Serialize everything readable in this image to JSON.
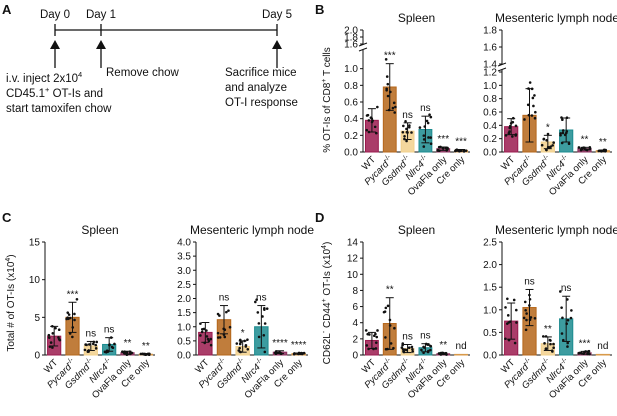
{
  "panel_labels": [
    "A",
    "B",
    "C",
    "D"
  ],
  "timeline": {
    "days": [
      "Day 0",
      "Day 1",
      "Day 5"
    ],
    "event_day0": [
      "i.v. inject 2x10",
      "4",
      "CD45.1",
      "+",
      " OT-Is and",
      "start tamoxifen chow"
    ],
    "event_day1": "Remove chow",
    "event_day5": [
      "Sacrifice mice",
      "and  analyze",
      "OT-I response"
    ]
  },
  "categories": [
    {
      "pre": "WT",
      "sup": "",
      "italic": false
    },
    {
      "pre": "Pycard",
      "sup": "-/-",
      "italic": true
    },
    {
      "pre": "Gsdmd",
      "sup": "-/-",
      "italic": true
    },
    {
      "pre": "Nlrc4",
      "sup": "-/-",
      "italic": true
    },
    {
      "pre": "OvaFla only",
      "sup": "",
      "italic": false
    },
    {
      "pre": "Cre only",
      "sup": "",
      "italic": false
    }
  ],
  "colors": {
    "WT": "#9b1b4f",
    "Pycard": "#b5661a",
    "Gsdmd": "#f2d08c",
    "Nlrc4": "#1b8b8f",
    "OvaFla": "#8a2f5c",
    "Cre": "#d89a4a"
  },
  "ylabels": {
    "B": [
      "% OT-Is of CD8",
      "+",
      " T cells"
    ],
    "C": [
      "Total # of OT-Is (x10",
      "4",
      ")"
    ],
    "D": [
      "CD62L",
      "-",
      " CD44",
      "+",
      " OT-Is (x10",
      "4",
      ")"
    ]
  },
  "chart_data": [
    {
      "panel": "B",
      "type": "scatter",
      "title": "Spleen",
      "ylim": [
        0,
        2.0
      ],
      "y_break": [
        1.2,
        1.6
      ],
      "yticks": [
        "0.0",
        "0.2",
        "0.4",
        "0.6",
        "0.8",
        "1.0",
        "1.6",
        "1.8",
        "2.0"
      ],
      "values": [
        0.38,
        0.78,
        0.25,
        0.27,
        0.04,
        0.02
      ],
      "errors": [
        0.14,
        0.28,
        0.1,
        0.16,
        0.02,
        0.01
      ],
      "sig": [
        "",
        "***",
        "ns",
        "ns",
        "***",
        "***"
      ]
    },
    {
      "panel": "B",
      "type": "scatter",
      "title": "Mesenteric lymph node",
      "ylim": [
        0,
        1.8
      ],
      "y_break": [
        1.2,
        1.4
      ],
      "yticks": [
        "0.0",
        "0.2",
        "0.4",
        "0.6",
        "0.8",
        "1.0",
        "1.2",
        "1.4",
        "1.6",
        "1.8"
      ],
      "values": [
        0.38,
        0.55,
        0.15,
        0.33,
        0.05,
        0.02
      ],
      "errors": [
        0.12,
        0.4,
        0.1,
        0.18,
        0.02,
        0.01
      ],
      "sig": [
        "",
        "",
        "*",
        "",
        "**",
        "**"
      ]
    },
    {
      "panel": "C",
      "type": "scatter",
      "title": "Spleen",
      "ylim": [
        0,
        15
      ],
      "yticks": [
        "0",
        "5",
        "10",
        "15"
      ],
      "values": [
        2.5,
        5.0,
        1.2,
        1.4,
        0.3,
        0.1
      ],
      "errors": [
        1.3,
        2.0,
        0.6,
        0.9,
        0.2,
        0.05
      ],
      "sig": [
        "",
        "***",
        "ns",
        "ns",
        "**",
        "**"
      ]
    },
    {
      "panel": "C",
      "type": "scatter",
      "title": "Mesenteric lymph node",
      "ylim": [
        0,
        4.0
      ],
      "yticks": [
        "0.0",
        "0.5",
        "1.0",
        "1.5",
        "2.0",
        "2.5",
        "3.0",
        "3.5",
        "4.0"
      ],
      "values": [
        0.8,
        1.25,
        0.3,
        1.0,
        0.1,
        0.05
      ],
      "errors": [
        0.35,
        0.5,
        0.2,
        0.75,
        0.05,
        0.02
      ],
      "sig": [
        "",
        "ns",
        "*",
        "ns",
        "****",
        "****"
      ]
    },
    {
      "panel": "D",
      "type": "scatter",
      "title": "Spleen",
      "ylim": [
        0,
        14
      ],
      "yticks": [
        "0",
        "2",
        "4",
        "6",
        "8",
        "10",
        "12",
        "14"
      ],
      "values": [
        1.8,
        3.9,
        0.8,
        0.9,
        0.15,
        0
      ],
      "errors": [
        1.0,
        3.2,
        0.5,
        0.5,
        0.1,
        0
      ],
      "sig": [
        "",
        "**",
        "ns",
        "ns",
        "**",
        "nd"
      ]
    },
    {
      "panel": "D",
      "type": "scatter",
      "title": "Mesenteric lymph node",
      "ylim": [
        0,
        2.5
      ],
      "yticks": [
        "0.0",
        "0.5",
        "1.0",
        "1.5",
        "2.0",
        "2.5"
      ],
      "values": [
        0.75,
        1.05,
        0.25,
        0.8,
        0.05,
        0
      ],
      "errors": [
        0.4,
        0.4,
        0.15,
        0.5,
        0.03,
        0
      ],
      "sig": [
        "",
        "ns",
        "**",
        "ns",
        "***",
        "nd"
      ]
    }
  ]
}
